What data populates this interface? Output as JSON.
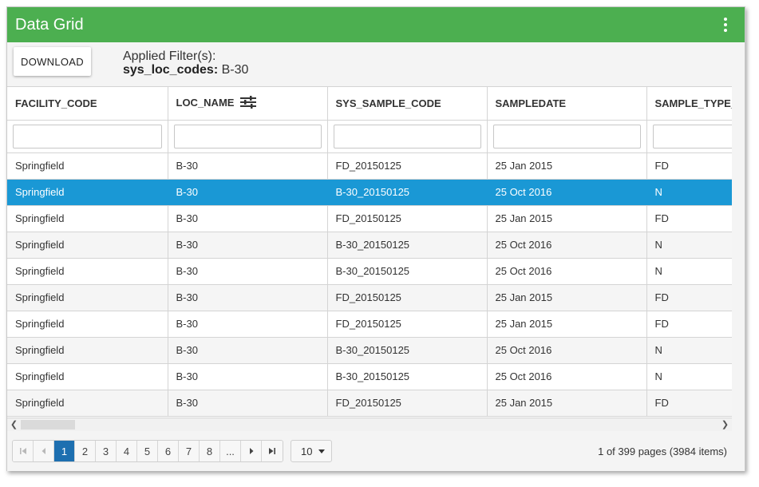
{
  "header": {
    "title": "Data Grid",
    "menu_icon": "kebab-menu-icon"
  },
  "toolbar": {
    "download_label": "DOWNLOAD",
    "applied_filters_label": "Applied Filter(s):",
    "filter_field": "sys_loc_codes:",
    "filter_value": "B-30"
  },
  "grid": {
    "columns": [
      "FACILITY_CODE",
      "LOC_NAME",
      "SYS_SAMPLE_CODE",
      "SAMPLEDATE",
      "SAMPLE_TYPE_"
    ],
    "filter_icon_column": "LOC_NAME",
    "selected_row": 1,
    "rows": [
      [
        "Springfield",
        "B-30",
        "FD_20150125",
        "25 Jan 2015",
        "FD"
      ],
      [
        "Springfield",
        "B-30",
        "B-30_20150125",
        "25 Oct 2016",
        "N"
      ],
      [
        "Springfield",
        "B-30",
        "FD_20150125",
        "25 Jan 2015",
        "FD"
      ],
      [
        "Springfield",
        "B-30",
        "B-30_20150125",
        "25 Oct 2016",
        "N"
      ],
      [
        "Springfield",
        "B-30",
        "B-30_20150125",
        "25 Oct 2016",
        "N"
      ],
      [
        "Springfield",
        "B-30",
        "FD_20150125",
        "25 Jan 2015",
        "FD"
      ],
      [
        "Springfield",
        "B-30",
        "FD_20150125",
        "25 Jan 2015",
        "FD"
      ],
      [
        "Springfield",
        "B-30",
        "B-30_20150125",
        "25 Oct 2016",
        "N"
      ],
      [
        "Springfield",
        "B-30",
        "B-30_20150125",
        "25 Oct 2016",
        "N"
      ],
      [
        "Springfield",
        "B-30",
        "FD_20150125",
        "25 Jan 2015",
        "FD"
      ]
    ]
  },
  "pager": {
    "pages": [
      "1",
      "2",
      "3",
      "4",
      "5",
      "6",
      "7",
      "8",
      "..."
    ],
    "current_page": "1",
    "page_size": "10",
    "info": "1 of 399 pages (3984 items)"
  },
  "colors": {
    "header": "#4caf50",
    "selected_row": "#1a98d5",
    "active_page": "#1d6fb0"
  }
}
